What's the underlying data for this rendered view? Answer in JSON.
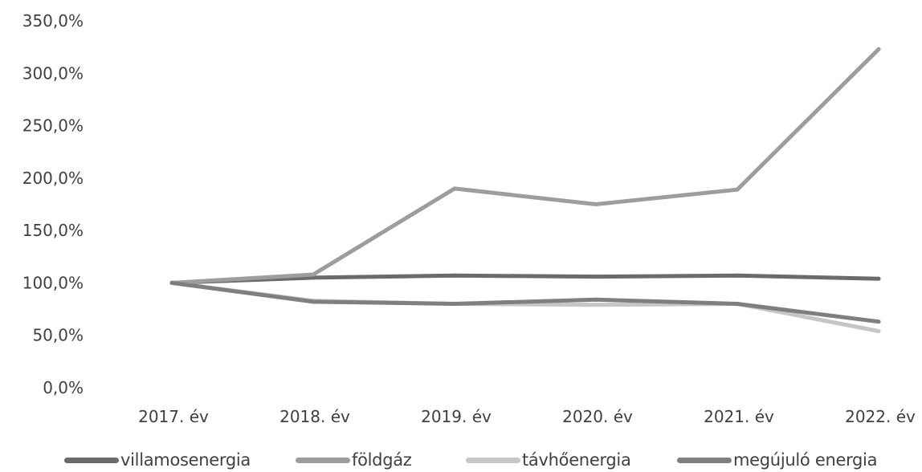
{
  "chart_data": {
    "type": "line",
    "title": "",
    "xlabel": "",
    "ylabel": "",
    "categories": [
      "2017. év",
      "2018. év",
      "2019. év",
      "2020. év",
      "2021. év",
      "2022. év"
    ],
    "y_ticks": [
      "0,0%",
      "50,0%",
      "100,0%",
      "150,0%",
      "200,0%",
      "250,0%",
      "300,0%",
      "350,0%"
    ],
    "ylim": [
      0,
      350
    ],
    "grid": false,
    "legend_position": "bottom",
    "series": [
      {
        "name": "villamosenergia",
        "values": [
          100,
          105,
          107,
          106,
          107,
          104
        ],
        "color": "#6b6b6b"
      },
      {
        "name": "földgáz",
        "values": [
          100,
          108,
          190,
          175,
          189,
          323
        ],
        "color": "#9d9d9d"
      },
      {
        "name": "távhőenergia",
        "values": [
          100,
          83,
          80,
          79,
          80,
          54
        ],
        "color": "#c6c6c6"
      },
      {
        "name": "megújuló energia",
        "values": [
          100,
          82,
          80,
          84,
          80,
          63
        ],
        "color": "#7f7f7f"
      }
    ]
  }
}
